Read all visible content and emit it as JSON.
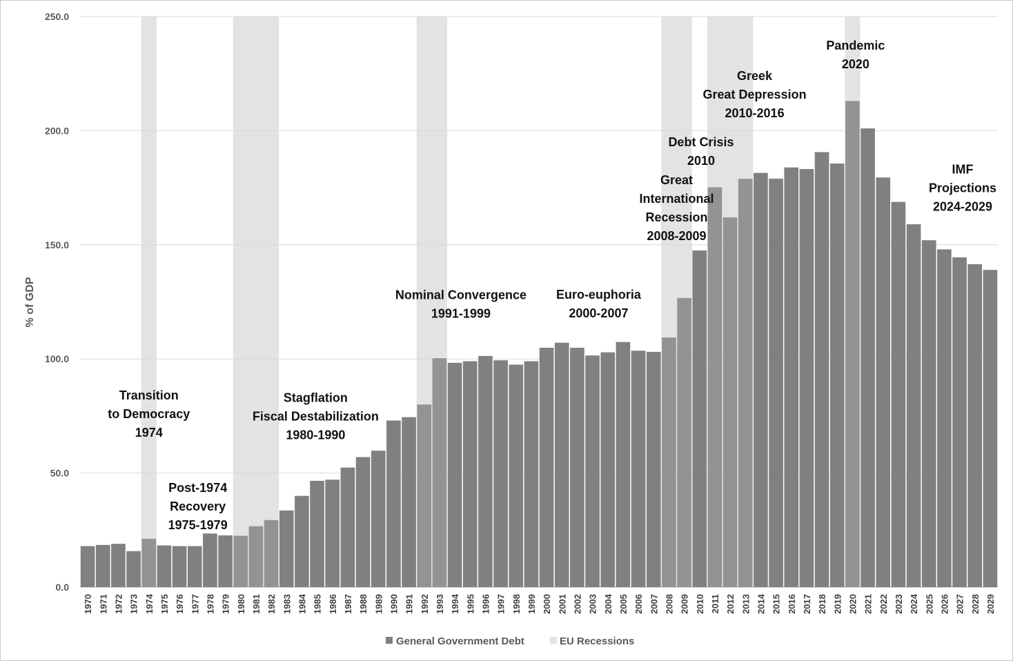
{
  "chart_data": {
    "type": "bar",
    "title": "",
    "xlabel": "",
    "ylabel": "% of GDP",
    "ylim": [
      0,
      250
    ],
    "yticks": [
      "0.0",
      "50.0",
      "100.0",
      "150.0",
      "200.0",
      "250.0"
    ],
    "grid": true,
    "categories": [
      "1970",
      "1971",
      "1972",
      "1973",
      "1974",
      "1975",
      "1976",
      "1977",
      "1978",
      "1979",
      "1980",
      "1981",
      "1982",
      "1983",
      "1984",
      "1985",
      "1986",
      "1987",
      "1988",
      "1989",
      "1990",
      "1991",
      "1992",
      "1993",
      "1994",
      "1995",
      "1996",
      "1997",
      "1998",
      "1999",
      "2000",
      "2001",
      "2002",
      "2003",
      "2004",
      "2005",
      "2006",
      "2007",
      "2008",
      "2009",
      "2010",
      "2011",
      "2012",
      "2013",
      "2014",
      "2015",
      "2016",
      "2017",
      "2018",
      "2019",
      "2020",
      "2021",
      "2022",
      "2023",
      "2024",
      "2025",
      "2026",
      "2027",
      "2028",
      "2029"
    ],
    "series": [
      {
        "name": "General Government Debt",
        "color": "#808080",
        "values": [
          18.0,
          18.5,
          19.0,
          15.8,
          21.2,
          18.3,
          18.0,
          18.0,
          23.5,
          22.7,
          22.5,
          26.7,
          29.4,
          33.6,
          40.0,
          46.6,
          47.1,
          52.4,
          57.0,
          59.8,
          73.0,
          74.5,
          80.0,
          100.3,
          98.3,
          99.0,
          101.3,
          99.4,
          97.5,
          99.0,
          104.9,
          107.1,
          104.9,
          101.5,
          102.9,
          107.4,
          103.6,
          103.1,
          109.4,
          126.7,
          147.5,
          175.2,
          162.0,
          178.9,
          181.5,
          179.0,
          183.9,
          183.2,
          190.6,
          185.6,
          213.0,
          201.0,
          179.5,
          168.8,
          159.0,
          152.0,
          148.0,
          144.5,
          141.5,
          139.0
        ]
      }
    ],
    "recessions": {
      "name": "EU Recessions",
      "color": "#e3e3e3",
      "periods": [
        [
          1974,
          1974
        ],
        [
          1980,
          1982
        ],
        [
          1992,
          1993
        ],
        [
          2008,
          2009
        ],
        [
          2011,
          2013
        ],
        [
          2020,
          2020
        ]
      ]
    },
    "legend": {
      "placement": "bottom-center",
      "entries": [
        {
          "label": "General Government Debt",
          "color": "#808080"
        },
        {
          "label": "EU Recessions",
          "color": "#e3e3e3"
        }
      ]
    },
    "annotations": [
      {
        "lines": [
          "Transition",
          "to Democracy",
          "1974"
        ],
        "year": 1974,
        "value": 84
      },
      {
        "lines": [
          "Post-1974",
          "Recovery",
          "1975-1979"
        ],
        "year": 1977.2,
        "value": 43.5
      },
      {
        "lines": [
          "Stagflation",
          "Fiscal Destabilization",
          "1980-1990"
        ],
        "year": 1984.9,
        "value": 83
      },
      {
        "lines": [
          "Nominal Convergence",
          "1991-1999"
        ],
        "year": 1994.4,
        "value": 128
      },
      {
        "lines": [
          "Euro-euphoria",
          "2000-2007"
        ],
        "year": 2003.4,
        "value": 128.2
      },
      {
        "lines": [
          "Great",
          "International",
          "Recession",
          "2008-2009"
        ],
        "year": 2008.5,
        "value": 178.4
      },
      {
        "lines": [
          "Debt Crisis",
          "2010"
        ],
        "year": 2010.1,
        "value": 195
      },
      {
        "lines": [
          "Greek",
          "Great Depression",
          "2010-2016"
        ],
        "year": 2013.6,
        "value": 224
      },
      {
        "lines": [
          "Pandemic",
          "2020"
        ],
        "year": 2020.2,
        "value": 237.3
      },
      {
        "lines": [
          "IMF",
          "Projections",
          "2024-2029"
        ],
        "year": 2027.2,
        "value": 183
      }
    ]
  }
}
